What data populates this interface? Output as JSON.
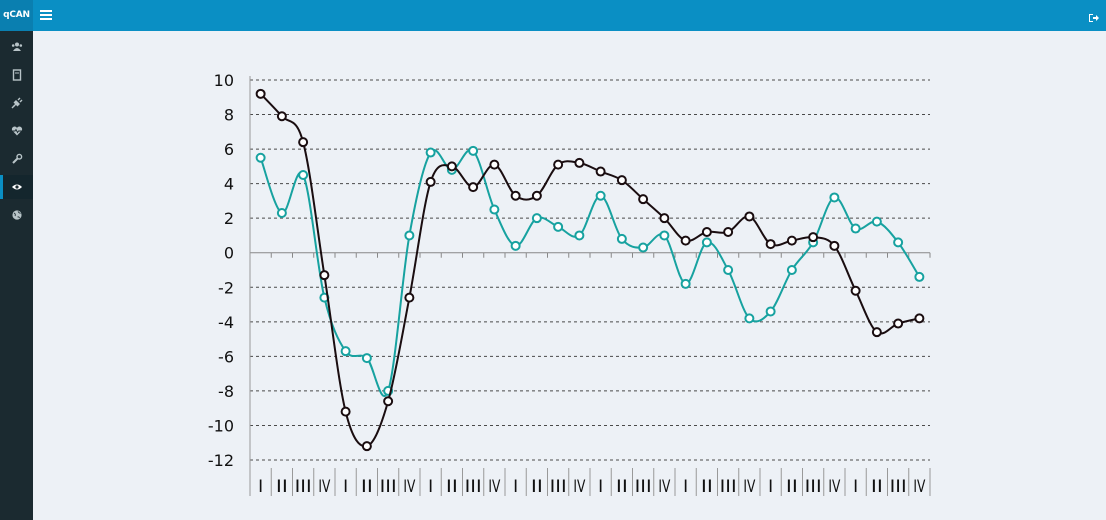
{
  "app": {
    "brand": "qCAN"
  },
  "header": {
    "menu_icon": "hamburger-icon",
    "logout_icon": "logout-icon"
  },
  "sidebar": {
    "items": [
      {
        "icon": "users-icon"
      },
      {
        "icon": "book-icon"
      },
      {
        "icon": "plug-icon"
      },
      {
        "icon": "heartbeat-icon"
      },
      {
        "icon": "wrench-icon"
      },
      {
        "icon": "eye-icon",
        "active": true
      },
      {
        "icon": "globe-icon"
      }
    ]
  },
  "colors": {
    "topbar": "#0a8fc4",
    "sidebar": "#1b2a30",
    "series_black": "#1a0d10",
    "series_teal": "#17a2a0"
  },
  "chart_data": {
    "type": "line",
    "title": "",
    "xlabel": "",
    "ylabel": "",
    "ylim": [
      -12,
      10
    ],
    "yticks": [
      "10",
      "8",
      "6",
      "4",
      "2",
      "0",
      "-2",
      "-4",
      "-6",
      "-8",
      "-10",
      "-12"
    ],
    "grid": true,
    "categories": [
      "I",
      "II",
      "III",
      "IV",
      "I",
      "II",
      "III",
      "IV",
      "I",
      "II",
      "III",
      "IV",
      "I",
      "II",
      "III",
      "IV",
      "I",
      "II",
      "III",
      "IV",
      "I",
      "II",
      "III",
      "IV",
      "I",
      "II",
      "III",
      "IV",
      "I",
      "II",
      "III",
      "IV"
    ],
    "series": [
      {
        "color": "#1a0d10",
        "values": [
          9.2,
          7.9,
          6.4,
          -1.3,
          -9.2,
          -11.2,
          -8.6,
          -2.6,
          4.1,
          5.0,
          3.8,
          5.1,
          3.3,
          3.3,
          5.1,
          5.2,
          4.7,
          4.2,
          3.1,
          2.0,
          0.7,
          1.2,
          1.2,
          2.1,
          0.5,
          0.7,
          0.9,
          0.4,
          -2.2,
          -4.6,
          -4.1,
          -3.8
        ]
      },
      {
        "color": "#17a2a0",
        "values": [
          5.5,
          2.3,
          4.5,
          -2.6,
          -5.7,
          -6.1,
          -8.0,
          1.0,
          5.8,
          4.8,
          5.9,
          2.5,
          0.4,
          2.0,
          1.5,
          1.0,
          3.3,
          0.8,
          0.3,
          1.0,
          -1.8,
          0.6,
          -1.0,
          -3.8,
          -3.4,
          -1.0,
          0.6,
          3.2,
          1.4,
          1.8,
          0.6,
          -1.4
        ]
      }
    ]
  }
}
